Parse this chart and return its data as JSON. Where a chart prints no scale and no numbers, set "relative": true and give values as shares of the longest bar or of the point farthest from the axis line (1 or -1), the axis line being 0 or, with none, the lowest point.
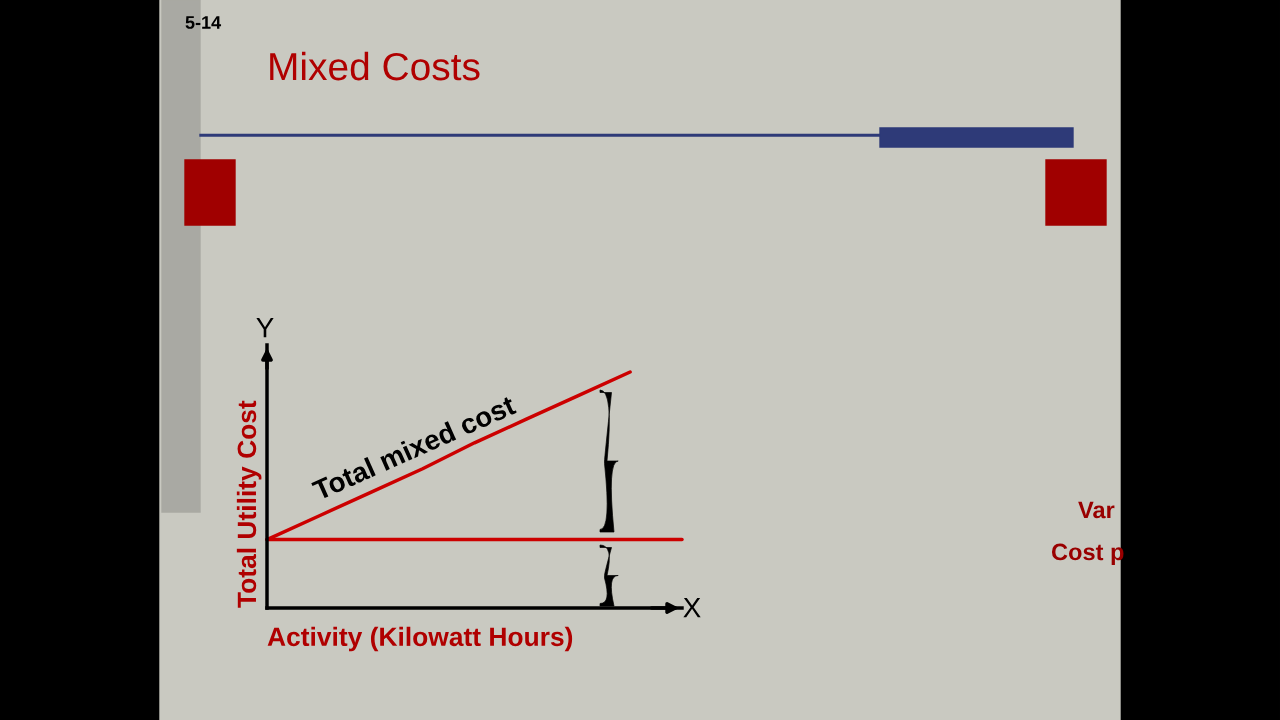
{
  "chart_data": {
    "type": "line",
    "title": "Mixed Costs",
    "xlabel": "Activity (Kilowatt Hours)",
    "ylabel": "Total Utility Cost",
    "relative": true,
    "categories": [
      null,
      null,
      null,
      null,
      null,
      null,
      null,
      null,
      null
    ],
    "annotations": [
      "5-14",
      "Y",
      "X",
      "Total mixed cost",
      "Var",
      "Cost p"
    ],
    "series": [
      {
        "color": "#cc0000",
        "values": [
          0.29,
          0.39,
          0.49,
          0.59,
          0.7,
          0.8,
          0.9,
          1.0,
          null
        ]
      },
      {
        "color": "#cc0000",
        "values": [
          0.29,
          0.29,
          0.29,
          0.29,
          0.29,
          0.29,
          0.29,
          0.29,
          0.29
        ]
      }
    ],
    "line_style": "solid"
  }
}
